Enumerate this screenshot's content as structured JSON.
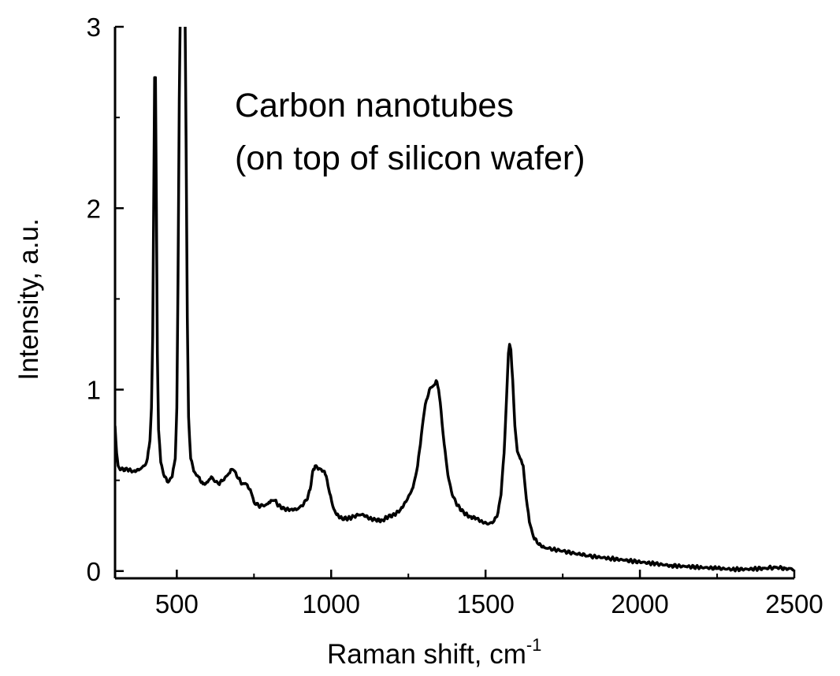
{
  "chart_data": {
    "type": "line",
    "title": "",
    "xlabel": "Raman shift, cm",
    "xlabel_superscript": "-1",
    "ylabel": "Intensity, a.u.",
    "xlim": [
      300,
      2500
    ],
    "ylim": [
      -0.04,
      3.0
    ],
    "x_ticks": [
      500,
      1000,
      1500,
      2000,
      2500
    ],
    "x_tick_labels": [
      "500",
      "1000",
      "1500",
      "2000",
      "2500"
    ],
    "y_ticks": [
      0,
      1,
      2,
      3
    ],
    "y_tick_labels": [
      "0",
      "1",
      "2",
      "3"
    ],
    "grid": false,
    "annotations": [
      "Carbon nanotubes",
      "(on top of silicon wafer)"
    ],
    "series": [
      {
        "name": "Carbon nanotubes",
        "color": "#000000",
        "points": [
          [
            300,
            0.8
          ],
          [
            305,
            0.65
          ],
          [
            310,
            0.58
          ],
          [
            320,
            0.56
          ],
          [
            340,
            0.56
          ],
          [
            360,
            0.55
          ],
          [
            380,
            0.56
          ],
          [
            395,
            0.58
          ],
          [
            405,
            0.62
          ],
          [
            413,
            0.72
          ],
          [
            418,
            0.9
          ],
          [
            422,
            1.3
          ],
          [
            425,
            2.0
          ],
          [
            428,
            2.72
          ],
          [
            431,
            2.72
          ],
          [
            434,
            2.0
          ],
          [
            437,
            1.2
          ],
          [
            441,
            0.78
          ],
          [
            448,
            0.6
          ],
          [
            460,
            0.52
          ],
          [
            472,
            0.49
          ],
          [
            485,
            0.52
          ],
          [
            495,
            0.62
          ],
          [
            500,
            0.9
          ],
          [
            504,
            1.6
          ],
          [
            508,
            2.6
          ],
          [
            511,
            3.05
          ],
          [
            514,
            3.05
          ],
          [
            519,
            3.05
          ],
          [
            521,
            3.05
          ],
          [
            524,
            3.05
          ],
          [
            527,
            3.05
          ],
          [
            530,
            2.4
          ],
          [
            534,
            1.4
          ],
          [
            538,
            0.85
          ],
          [
            545,
            0.62
          ],
          [
            555,
            0.55
          ],
          [
            570,
            0.52
          ],
          [
            585,
            0.48
          ],
          [
            600,
            0.49
          ],
          [
            612,
            0.52
          ],
          [
            620,
            0.5
          ],
          [
            635,
            0.48
          ],
          [
            650,
            0.5
          ],
          [
            665,
            0.53
          ],
          [
            675,
            0.56
          ],
          [
            688,
            0.55
          ],
          [
            700,
            0.51
          ],
          [
            712,
            0.48
          ],
          [
            725,
            0.48
          ],
          [
            738,
            0.45
          ],
          [
            750,
            0.38
          ],
          [
            765,
            0.36
          ],
          [
            780,
            0.36
          ],
          [
            795,
            0.37
          ],
          [
            805,
            0.39
          ],
          [
            818,
            0.39
          ],
          [
            830,
            0.36
          ],
          [
            850,
            0.34
          ],
          [
            870,
            0.34
          ],
          [
            890,
            0.34
          ],
          [
            905,
            0.36
          ],
          [
            920,
            0.39
          ],
          [
            932,
            0.45
          ],
          [
            940,
            0.55
          ],
          [
            948,
            0.58
          ],
          [
            958,
            0.56
          ],
          [
            968,
            0.56
          ],
          [
            978,
            0.55
          ],
          [
            987,
            0.5
          ],
          [
            995,
            0.43
          ],
          [
            1005,
            0.36
          ],
          [
            1018,
            0.31
          ],
          [
            1035,
            0.29
          ],
          [
            1055,
            0.29
          ],
          [
            1075,
            0.3
          ],
          [
            1090,
            0.31
          ],
          [
            1105,
            0.31
          ],
          [
            1125,
            0.29
          ],
          [
            1145,
            0.28
          ],
          [
            1165,
            0.28
          ],
          [
            1185,
            0.3
          ],
          [
            1205,
            0.31
          ],
          [
            1225,
            0.34
          ],
          [
            1245,
            0.39
          ],
          [
            1265,
            0.46
          ],
          [
            1280,
            0.58
          ],
          [
            1292,
            0.75
          ],
          [
            1305,
            0.92
          ],
          [
            1318,
            1.0
          ],
          [
            1330,
            1.02
          ],
          [
            1340,
            1.05
          ],
          [
            1348,
            1.0
          ],
          [
            1356,
            0.88
          ],
          [
            1366,
            0.7
          ],
          [
            1378,
            0.53
          ],
          [
            1392,
            0.42
          ],
          [
            1410,
            0.36
          ],
          [
            1430,
            0.32
          ],
          [
            1450,
            0.3
          ],
          [
            1470,
            0.29
          ],
          [
            1490,
            0.27
          ],
          [
            1510,
            0.26
          ],
          [
            1525,
            0.27
          ],
          [
            1537,
            0.3
          ],
          [
            1550,
            0.42
          ],
          [
            1560,
            0.65
          ],
          [
            1568,
            0.95
          ],
          [
            1574,
            1.2
          ],
          [
            1578,
            1.25
          ],
          [
            1582,
            1.22
          ],
          [
            1588,
            1.05
          ],
          [
            1595,
            0.8
          ],
          [
            1603,
            0.66
          ],
          [
            1612,
            0.62
          ],
          [
            1622,
            0.58
          ],
          [
            1632,
            0.4
          ],
          [
            1642,
            0.27
          ],
          [
            1655,
            0.19
          ],
          [
            1670,
            0.15
          ],
          [
            1690,
            0.13
          ],
          [
            1720,
            0.12
          ],
          [
            1750,
            0.11
          ],
          [
            1780,
            0.1
          ],
          [
            1810,
            0.09
          ],
          [
            1850,
            0.08
          ],
          [
            1900,
            0.07
          ],
          [
            1950,
            0.06
          ],
          [
            2000,
            0.05
          ],
          [
            2050,
            0.04
          ],
          [
            2100,
            0.03
          ],
          [
            2150,
            0.025
          ],
          [
            2200,
            0.02
          ],
          [
            2250,
            0.015
          ],
          [
            2300,
            0.01
          ],
          [
            2350,
            0.01
          ],
          [
            2400,
            0.015
          ],
          [
            2440,
            0.02
          ],
          [
            2470,
            0.015
          ],
          [
            2500,
            0.01
          ]
        ]
      }
    ]
  }
}
